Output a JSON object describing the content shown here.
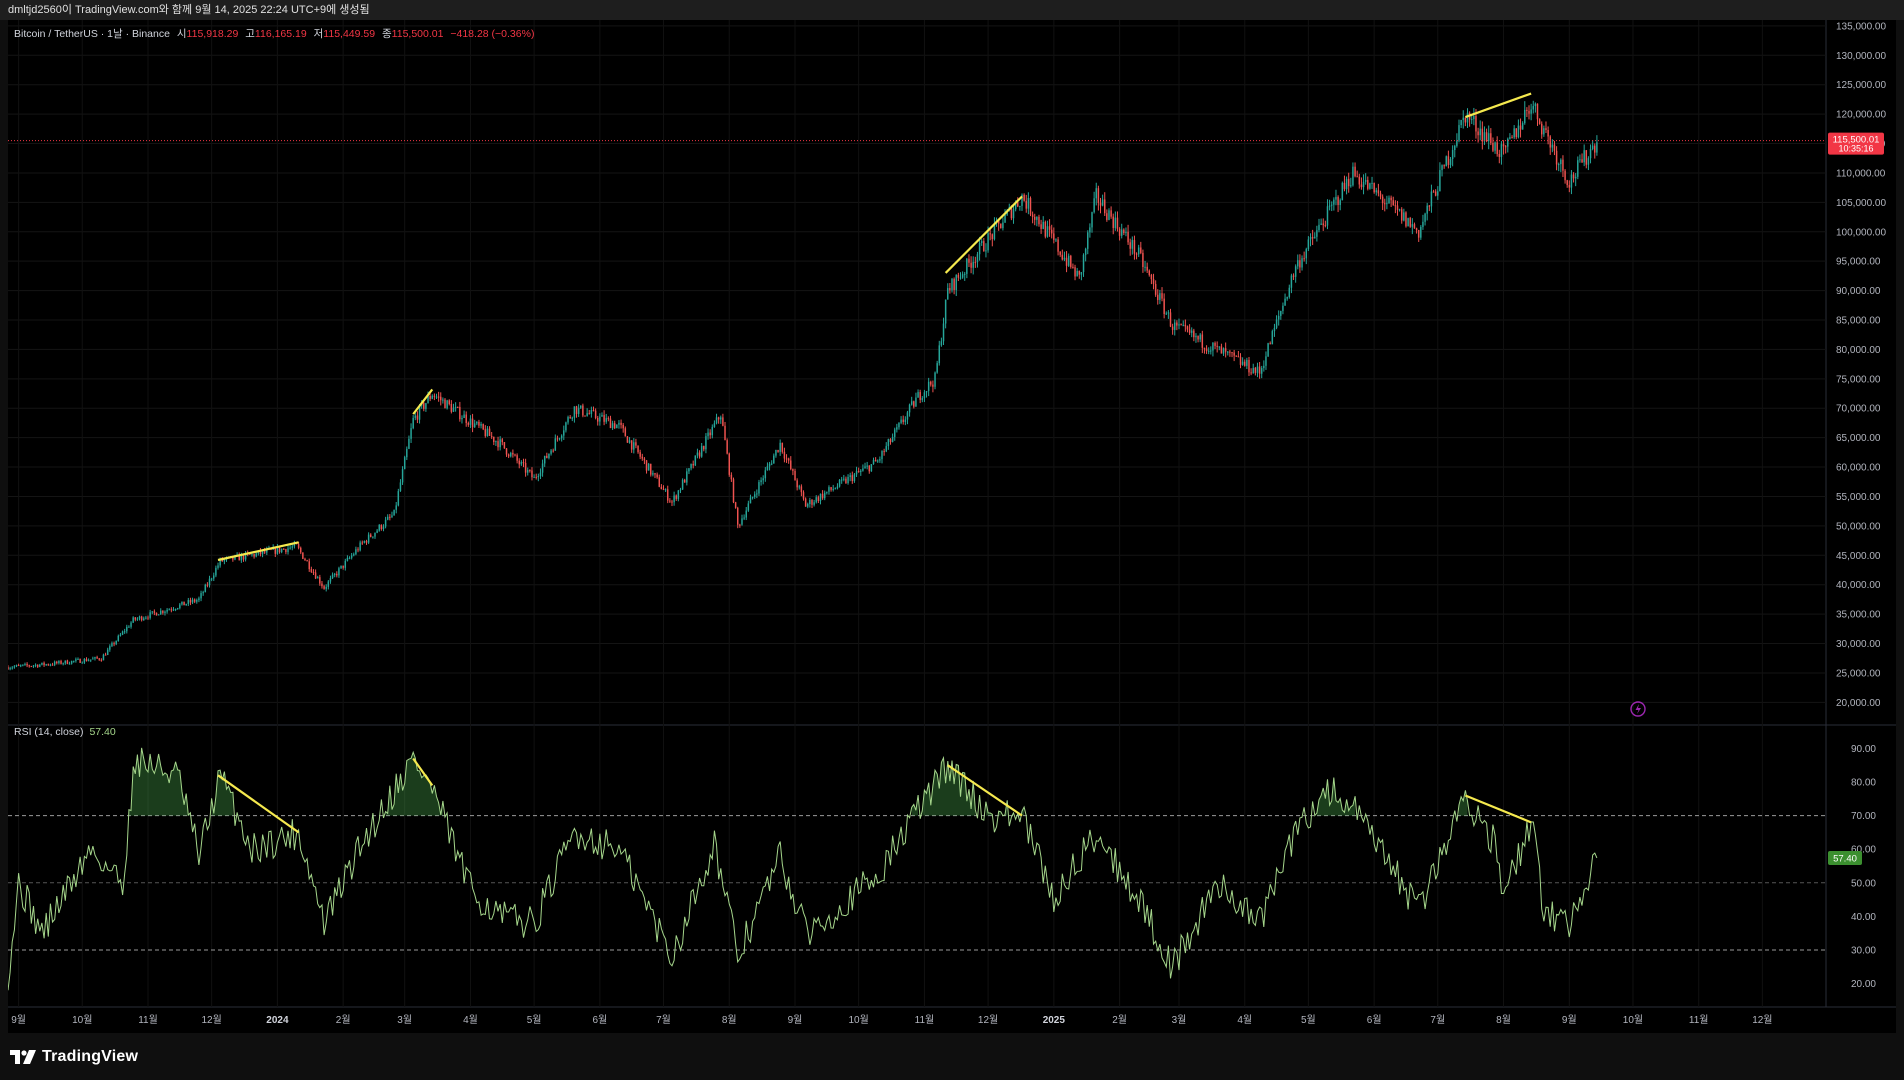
{
  "header": {
    "title": "dmltjd2560이 TradingView.com와 함께 9월 14, 2025 22:24 UTC+9에 생성됨"
  },
  "legend": {
    "symbol": "Bitcoin / TetherUS · 1날 · Binance",
    "open_label": "시",
    "open": "115,918.29",
    "high_label": "고",
    "high": "116,165.19",
    "low_label": "저",
    "low": "115,449.59",
    "close_label": "종",
    "close": "115,500.01",
    "change": "−418.28 (−0.36%)"
  },
  "price_tag": {
    "price": "115,500.01",
    "countdown": "10:35:16"
  },
  "rsi": {
    "label": "RSI (14, close)",
    "value": "57.40"
  },
  "brand": {
    "name": "TradingView"
  },
  "colors": {
    "up": "#26a69a",
    "down": "#ef5350",
    "rsi": "#a5d68b",
    "trendline": "#f5e94e",
    "price_line": "#f23645"
  },
  "chart_data": [
    {
      "type": "candlestick",
      "title": "Bitcoin / TetherUS · 1날 · Binance",
      "y_ticks": [
        "20,000.00",
        "25,000.00",
        "30,000.00",
        "35,000.00",
        "40,000.00",
        "45,000.00",
        "50,000.00",
        "55,000.00",
        "60,000.00",
        "65,000.00",
        "70,000.00",
        "75,000.00",
        "80,000.00",
        "85,000.00",
        "90,000.00",
        "95,000.00",
        "100,000.00",
        "105,000.00",
        "110,000.00",
        "115,000.00",
        "120,000.00",
        "125,000.00",
        "130,000.00",
        "135,000.00"
      ],
      "ylim": [
        17000,
        136000
      ],
      "x_ticks": [
        "9월",
        "10월",
        "11월",
        "12월",
        "2024",
        "2월",
        "3월",
        "4월",
        "5월",
        "6월",
        "7월",
        "8월",
        "9월",
        "10월",
        "11월",
        "12월",
        "2025",
        "2월",
        "3월",
        "4월",
        "5월",
        "6월",
        "7월",
        "8월",
        "9월",
        "10월",
        "11월",
        "12월"
      ],
      "x_start": "2023-08-27",
      "x_end": "2025-12-31",
      "last_price": 115500.01,
      "trajectory": [
        [
          "2023-08-27",
          26000
        ],
        [
          "2023-09-15",
          26500
        ],
        [
          "2023-10-10",
          27500
        ],
        [
          "2023-10-25",
          34000
        ],
        [
          "2023-11-25",
          37500
        ],
        [
          "2023-12-05",
          44000
        ],
        [
          "2024-01-10",
          46500
        ],
        [
          "2024-01-23",
          39500
        ],
        [
          "2024-02-10",
          47000
        ],
        [
          "2024-02-25",
          52000
        ],
        [
          "2024-03-05",
          68000
        ],
        [
          "2024-03-14",
          72500
        ],
        [
          "2024-04-15",
          64000
        ],
        [
          "2024-05-01",
          58000
        ],
        [
          "2024-05-20",
          70000
        ],
        [
          "2024-06-10",
          67000
        ],
        [
          "2024-07-05",
          54000
        ],
        [
          "2024-07-28",
          69000
        ],
        [
          "2024-08-05",
          50000
        ],
        [
          "2024-08-25",
          64000
        ],
        [
          "2024-09-06",
          53500
        ],
        [
          "2024-10-10",
          61000
        ],
        [
          "2024-10-29",
          72000
        ],
        [
          "2024-11-06",
          75000
        ],
        [
          "2024-11-12",
          90000
        ],
        [
          "2024-12-17",
          106000
        ],
        [
          "2025-01-13",
          92000
        ],
        [
          "2025-01-21",
          106000
        ],
        [
          "2025-02-10",
          96000
        ],
        [
          "2025-02-26",
          84000
        ],
        [
          "2025-04-08",
          76000
        ],
        [
          "2025-04-25",
          94000
        ],
        [
          "2025-05-22",
          110000
        ],
        [
          "2025-06-22",
          100000
        ],
        [
          "2025-07-14",
          120000
        ],
        [
          "2025-08-01",
          113000
        ],
        [
          "2025-08-14",
          122000
        ],
        [
          "2025-09-01",
          108500
        ],
        [
          "2025-09-14",
          115500
        ]
      ],
      "trendlines": [
        [
          [
            "2023-12-04",
            44200
          ],
          [
            "2024-01-11",
            47200
          ]
        ],
        [
          [
            "2024-03-05",
            69000
          ],
          [
            "2024-03-14",
            73200
          ]
        ],
        [
          [
            "2024-11-11",
            93000
          ],
          [
            "2024-12-17",
            106000
          ]
        ],
        [
          [
            "2025-07-14",
            119500
          ],
          [
            "2025-08-14",
            123500
          ]
        ]
      ],
      "price_line": 115500.01
    },
    {
      "type": "line",
      "title": "RSI (14, close)",
      "y_ticks": [
        "20.00",
        "30.00",
        "40.00",
        "50.00",
        "60.00",
        "70.00",
        "80.00",
        "90.00"
      ],
      "ylim": [
        16,
        94
      ],
      "bands": [
        70,
        50,
        30
      ],
      "last_value": 57.4,
      "trajectory": [
        [
          "2023-08-27",
          22
        ],
        [
          "2023-09-01",
          50
        ],
        [
          "2023-09-12",
          35
        ],
        [
          "2023-10-05",
          60
        ],
        [
          "2023-10-20",
          50
        ],
        [
          "2023-10-26",
          87
        ],
        [
          "2023-11-15",
          82
        ],
        [
          "2023-11-25",
          58
        ],
        [
          "2023-12-05",
          82
        ],
        [
          "2023-12-20",
          60
        ],
        [
          "2024-01-11",
          65
        ],
        [
          "2024-01-23",
          38
        ],
        [
          "2024-02-10",
          62
        ],
        [
          "2024-03-05",
          87
        ],
        [
          "2024-03-14",
          78
        ],
        [
          "2024-04-01",
          48
        ],
        [
          "2024-04-15",
          40
        ],
        [
          "2024-05-01",
          38
        ],
        [
          "2024-05-20",
          65
        ],
        [
          "2024-06-10",
          60
        ],
        [
          "2024-07-05",
          28
        ],
        [
          "2024-07-25",
          62
        ],
        [
          "2024-08-05",
          28
        ],
        [
          "2024-08-25",
          58
        ],
        [
          "2024-09-06",
          35
        ],
        [
          "2024-10-10",
          52
        ],
        [
          "2024-10-29",
          72
        ],
        [
          "2024-11-12",
          85
        ],
        [
          "2024-12-01",
          70
        ],
        [
          "2024-12-17",
          70
        ],
        [
          "2025-01-01",
          45
        ],
        [
          "2025-01-21",
          65
        ],
        [
          "2025-02-10",
          45
        ],
        [
          "2025-02-26",
          25
        ],
        [
          "2025-03-20",
          50
        ],
        [
          "2025-04-08",
          38
        ],
        [
          "2025-04-25",
          65
        ],
        [
          "2025-05-10",
          78
        ],
        [
          "2025-05-22",
          72
        ],
        [
          "2025-06-22",
          42
        ],
        [
          "2025-07-14",
          76
        ],
        [
          "2025-07-28",
          62
        ],
        [
          "2025-08-01",
          45
        ],
        [
          "2025-08-14",
          68
        ],
        [
          "2025-08-20",
          42
        ],
        [
          "2025-09-01",
          38
        ],
        [
          "2025-09-14",
          57.4
        ]
      ],
      "trendlines": [
        [
          [
            "2023-12-04",
            82
          ],
          [
            "2024-01-11",
            65
          ]
        ],
        [
          [
            "2024-03-05",
            87
          ],
          [
            "2024-03-14",
            79
          ]
        ],
        [
          [
            "2024-11-12",
            85
          ],
          [
            "2024-12-17",
            70
          ]
        ],
        [
          [
            "2025-07-14",
            76
          ],
          [
            "2025-08-14",
            68
          ]
        ]
      ]
    }
  ]
}
